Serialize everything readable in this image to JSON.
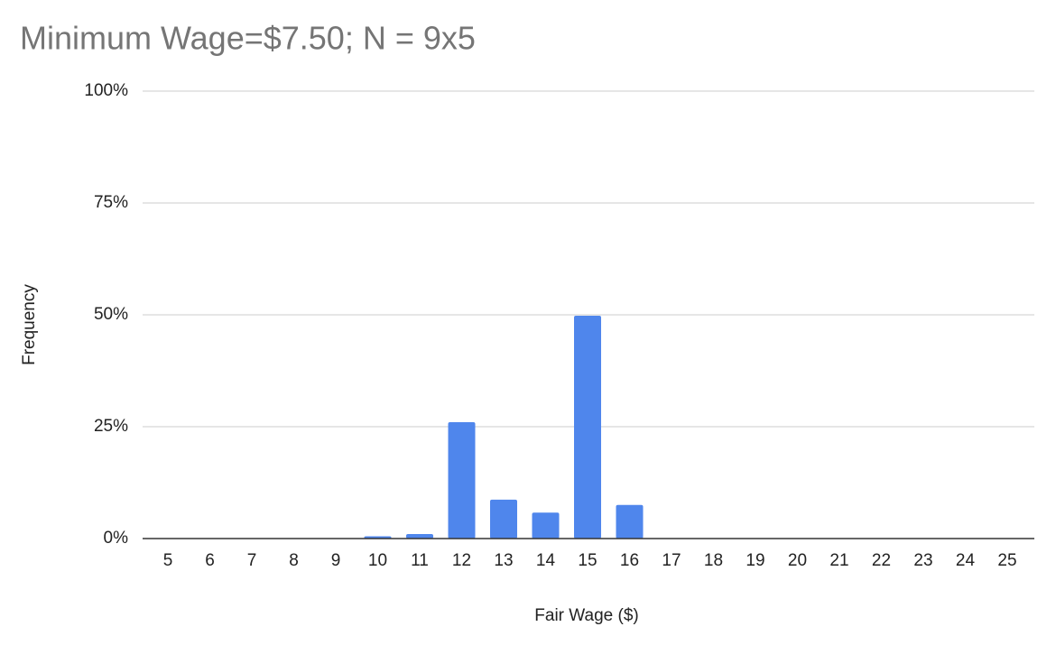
{
  "chart_data": {
    "type": "bar",
    "title": "Minimum Wage=$7.50; N = 9x5",
    "x_label": "Fair Wage ($)",
    "y_label": "Frequency",
    "categories": [
      "5",
      "6",
      "7",
      "8",
      "9",
      "10",
      "11",
      "12",
      "13",
      "14",
      "15",
      "16",
      "17",
      "18",
      "19",
      "20",
      "21",
      "22",
      "23",
      "24",
      "25"
    ],
    "values": [
      0,
      0,
      0,
      0,
      0,
      0.5,
      1,
      26,
      8.7,
      5.8,
      49.8,
      7.5,
      0,
      0,
      0,
      0,
      0,
      0,
      0,
      0,
      0
    ],
    "color": "#4f86ec",
    "ylim": [
      0,
      100
    ],
    "yticks": [
      {
        "value": 0,
        "label": "0%"
      },
      {
        "value": 25,
        "label": "25%"
      },
      {
        "value": 50,
        "label": "50%"
      },
      {
        "value": 75,
        "label": "75%"
      },
      {
        "value": 100,
        "label": "100%"
      }
    ],
    "grid": true
  }
}
